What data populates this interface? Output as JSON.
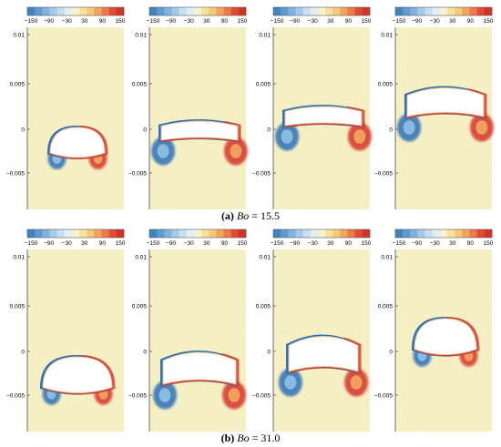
{
  "colorbar": {
    "tick_labels": [
      "−150",
      "−90",
      "−30",
      "30",
      "90",
      "150"
    ],
    "colors": [
      "#3f83c1",
      "#5d9bd0",
      "#7fb3dd",
      "#a3cbe8",
      "#c7e0f1",
      "#e3eff6",
      "#f7f2cf",
      "#f7e29a",
      "#f7c97a",
      "#f2a45d",
      "#ec7b48",
      "#e14b35",
      "#d13426"
    ]
  },
  "y_axis": {
    "tick_labels": [
      "0.01",
      "0.005",
      "0",
      "−0.005"
    ]
  },
  "background_color": "#f6f0c3",
  "bubble_color": "#ffffff",
  "panels": [
    {
      "id": "a",
      "caption_prefix": "(a) ",
      "caption_var": "Bo",
      "caption_suffix": " = 15.5"
    },
    {
      "id": "b",
      "caption_prefix": "(b) ",
      "caption_var": "Bo",
      "caption_suffix": " = 31.0"
    }
  ]
}
